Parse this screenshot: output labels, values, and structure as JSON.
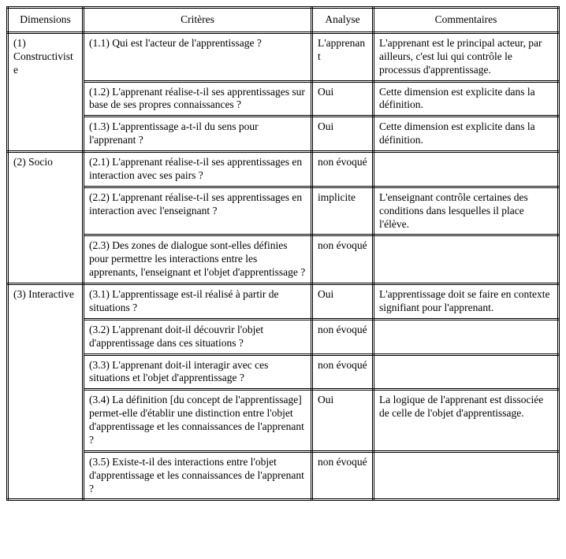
{
  "table": {
    "headers": {
      "dimensions": "Dimensions",
      "criteres": "Critères",
      "analyse": "Analyse",
      "commentaires": "Commentaires"
    },
    "groups": [
      {
        "dimension": "(1) Constructiviste",
        "rows": [
          {
            "critere": "(1.1) Qui est l'acteur de l'apprentissage ?",
            "analyse": "L'apprenant",
            "commentaire": "L'apprenant est le principal acteur, par ailleurs, c'est lui qui contrôle le processus d'apprentissage."
          },
          {
            "critere": "(1.2) L'apprenant réalise-t-il ses apprentissages sur base de ses propres connaissances ?",
            "analyse": "Oui",
            "commentaire": "Cette dimension est explicite dans la définition."
          },
          {
            "critere": "(1.3) L'apprentissage a-t-il du sens pour l'apprenant ?",
            "analyse": "Oui",
            "commentaire": "Cette dimension est explicite dans la définition."
          }
        ]
      },
      {
        "dimension": "(2) Socio",
        "rows": [
          {
            "critere": "(2.1) L'apprenant réalise-t-il ses apprentissages en interaction avec ses pairs ?",
            "analyse": "non évoqué",
            "commentaire": ""
          },
          {
            "critere": "(2.2) L'apprenant réalise-t-il ses apprentissages en interaction avec l'enseignant ?",
            "analyse": "implicite",
            "commentaire": "L'enseignant contrôle certaines des conditions dans lesquelles il place l'élève."
          },
          {
            "critere": "(2.3) Des zones de dialogue sont-elles définies pour permettre les interactions entre les apprenants, l'enseignant et l'objet d'apprentissage ?",
            "analyse": "non évoqué",
            "commentaire": ""
          }
        ]
      },
      {
        "dimension": "(3) Interactive",
        "rows": [
          {
            "critere": "(3.1) L'apprentissage est-il réalisé à partir de situations ?",
            "analyse": "Oui",
            "commentaire": "L'apprentissage doit se faire en contexte signifiant pour l'apprenant."
          },
          {
            "critere": "(3.2) L'apprenant doit-il découvrir l'objet d'apprentissage dans ces situations ?",
            "analyse": "non évoqué",
            "commentaire": ""
          },
          {
            "critere": "(3.3) L'apprenant doit-il interagir avec ces situations et l'objet d'apprentissage ?",
            "analyse": "non évoqué",
            "commentaire": ""
          },
          {
            "critere": "(3.4) La définition [du concept de l'apprentissage] permet-elle d'établir une distinction entre l'objet d'apprentissage et les connaissances de l'apprenant ?",
            "analyse": "Oui",
            "commentaire": "La logique de l'apprenant est dissociée de celle de l'objet d'apprentissage."
          },
          {
            "critere": "(3.5) Existe-t-il des interactions entre l'objet d'apprentissage et les connaissances de l'apprenant ?",
            "analyse": "non évoqué",
            "commentaire": ""
          }
        ]
      }
    ]
  }
}
